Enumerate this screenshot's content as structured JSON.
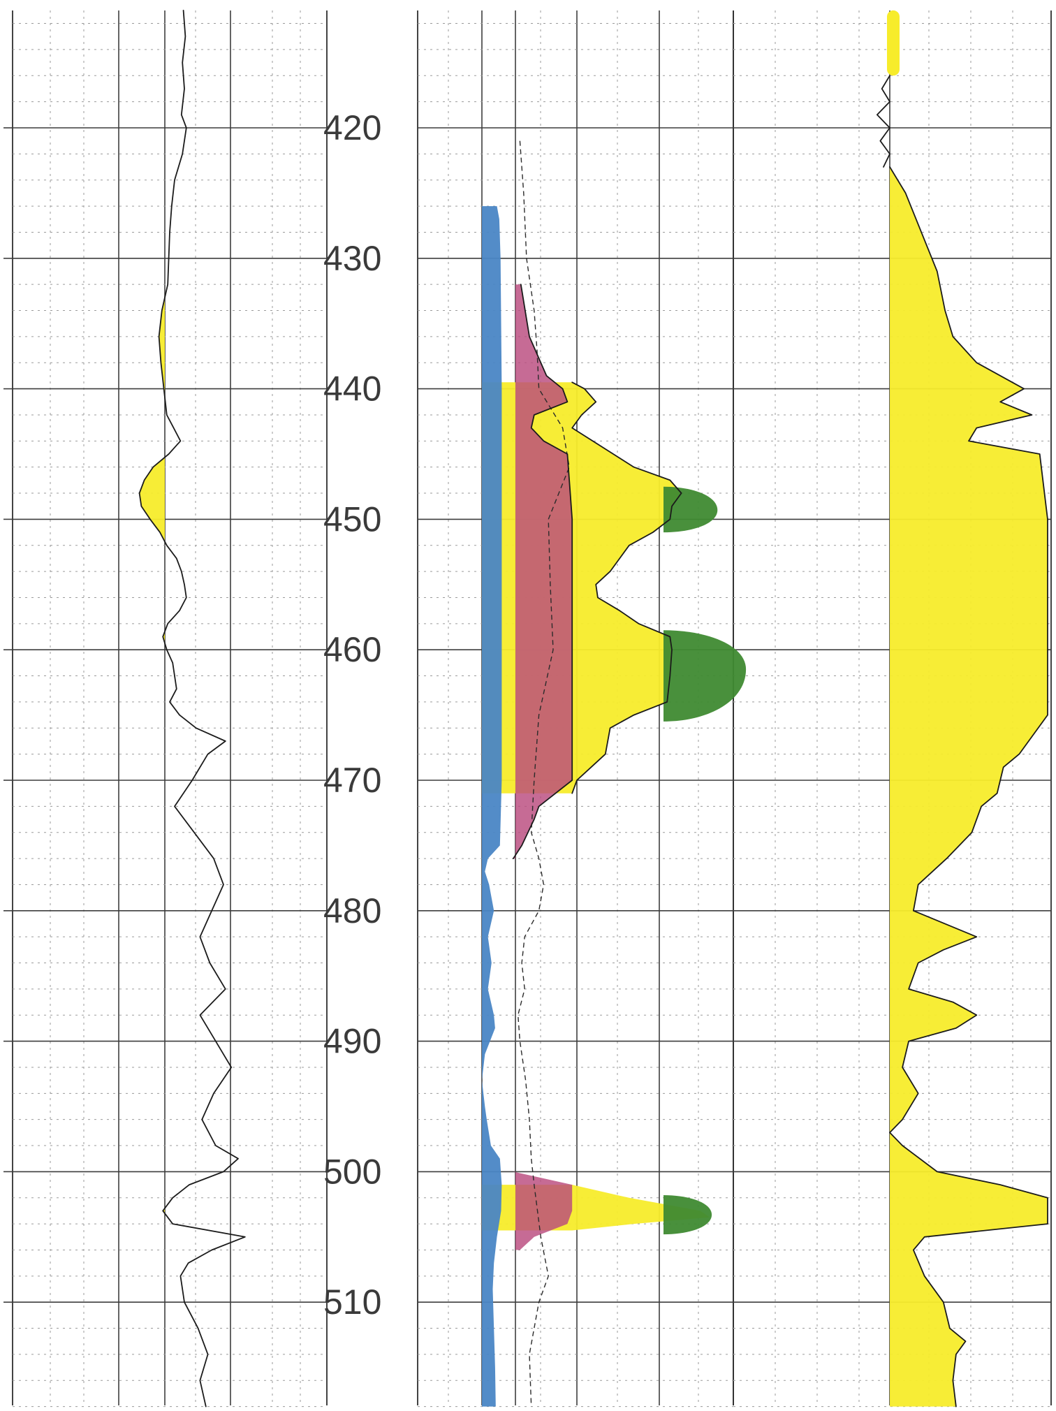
{
  "colors": {
    "paper": "#ffffff",
    "grid": "#3d3d3d",
    "curve": "#1b1b1b",
    "yellow": "#f7ec2b",
    "blue": "#4a86c5",
    "magenta": "#b94a7e",
    "green": "#3f8a32"
  },
  "chart_data": {
    "type": "area",
    "depth_axis": {
      "labels": [
        "420",
        "430",
        "440",
        "450",
        "460",
        "470",
        "480",
        "490",
        "500",
        "510"
      ],
      "range": [
        411,
        518
      ]
    },
    "track1": {
      "curve": [
        [
          411,
          0.19
        ],
        [
          413,
          0.21
        ],
        [
          415,
          0.18
        ],
        [
          417,
          0.2
        ],
        [
          419,
          0.17
        ],
        [
          420,
          0.22
        ],
        [
          422,
          0.18
        ],
        [
          424,
          0.1
        ],
        [
          426,
          0.07
        ],
        [
          428,
          0.05
        ],
        [
          430,
          0.04
        ],
        [
          432,
          0.03
        ],
        [
          434,
          -0.03
        ],
        [
          436,
          -0.06
        ],
        [
          438,
          -0.04
        ],
        [
          440,
          -0.01
        ],
        [
          442,
          0.02
        ],
        [
          443,
          0.09
        ],
        [
          444,
          0.16
        ],
        [
          445,
          0.04
        ],
        [
          446,
          -0.12
        ],
        [
          447,
          -0.21
        ],
        [
          448,
          -0.26
        ],
        [
          449,
          -0.24
        ],
        [
          450,
          -0.15
        ],
        [
          451,
          -0.05
        ],
        [
          452,
          0.02
        ],
        [
          453,
          0.12
        ],
        [
          454,
          0.17
        ],
        [
          455,
          0.2
        ],
        [
          456,
          0.22
        ],
        [
          457,
          0.15
        ],
        [
          458,
          0.03
        ],
        [
          459,
          -0.02
        ],
        [
          460,
          0.02
        ],
        [
          461,
          0.08
        ],
        [
          463,
          0.12
        ],
        [
          464,
          0.05
        ],
        [
          465,
          0.15
        ],
        [
          466,
          0.32
        ],
        [
          467,
          0.62
        ],
        [
          468,
          0.44
        ],
        [
          470,
          0.28
        ],
        [
          472,
          0.1
        ],
        [
          474,
          0.3
        ],
        [
          476,
          0.5
        ],
        [
          478,
          0.6
        ],
        [
          480,
          0.48
        ],
        [
          482,
          0.36
        ],
        [
          484,
          0.46
        ],
        [
          486,
          0.62
        ],
        [
          488,
          0.36
        ],
        [
          490,
          0.52
        ],
        [
          492,
          0.68
        ],
        [
          494,
          0.5
        ],
        [
          496,
          0.38
        ],
        [
          498,
          0.52
        ],
        [
          499,
          0.75
        ],
        [
          500,
          0.6
        ],
        [
          501,
          0.25
        ],
        [
          502,
          0.08
        ],
        [
          503,
          -0.02
        ],
        [
          504,
          0.08
        ],
        [
          505,
          0.82
        ],
        [
          506,
          0.48
        ],
        [
          507,
          0.24
        ],
        [
          508,
          0.16
        ],
        [
          510,
          0.2
        ],
        [
          512,
          0.34
        ],
        [
          514,
          0.44
        ],
        [
          516,
          0.36
        ],
        [
          518,
          0.42
        ]
      ],
      "yellow_fill_intervals": [
        [
          424,
          444
        ],
        [
          445,
          453.5
        ],
        [
          458,
          460.5
        ],
        [
          462.5,
          465
        ],
        [
          501,
          504.5
        ]
      ]
    },
    "track2": {
      "blue_fill": [
        [
          426,
          0.25
        ],
        [
          427,
          0.29
        ],
        [
          430,
          0.31
        ],
        [
          440,
          0.33
        ],
        [
          450,
          0.33
        ],
        [
          460,
          0.33
        ],
        [
          470,
          0.33
        ],
        [
          475,
          0.3
        ],
        [
          476,
          0.1
        ],
        [
          477,
          0.05
        ],
        [
          478,
          0.12
        ],
        [
          480,
          0.2
        ],
        [
          482,
          0.1
        ],
        [
          484,
          0.16
        ],
        [
          486,
          0.1
        ],
        [
          488,
          0.2
        ],
        [
          489,
          0.22
        ],
        [
          491,
          0.05
        ],
        [
          493,
          0.0
        ],
        [
          495,
          0.05
        ],
        [
          496,
          0.08
        ],
        [
          498,
          0.15
        ],
        [
          499,
          0.3
        ],
        [
          501,
          0.33
        ],
        [
          503,
          0.32
        ],
        [
          505,
          0.25
        ],
        [
          507,
          0.2
        ],
        [
          509,
          0.18
        ],
        [
          512,
          0.2
        ],
        [
          515,
          0.22
        ],
        [
          518,
          0.23
        ]
      ],
      "magenta_fill": [
        [
          432,
          0.41
        ],
        [
          436,
          0.5
        ],
        [
          439,
          0.68
        ],
        [
          440,
          0.85
        ],
        [
          441,
          0.9
        ],
        [
          442,
          0.55
        ],
        [
          443,
          0.52
        ],
        [
          444,
          0.65
        ],
        [
          445,
          0.9
        ],
        [
          450,
          0.95
        ],
        [
          460,
          0.95
        ],
        [
          470,
          0.95
        ],
        [
          472,
          0.6
        ],
        [
          473,
          0.55
        ],
        [
          475,
          0.42
        ],
        [
          476,
          0.33
        ]
      ],
      "yellow_fill": [
        [
          439.5,
          0.95
        ],
        [
          440,
          1.08
        ],
        [
          441,
          1.2
        ],
        [
          442,
          1.05
        ],
        [
          443,
          0.95
        ],
        [
          446,
          1.6
        ],
        [
          447,
          1.98
        ],
        [
          448,
          2.1
        ],
        [
          449,
          2.0
        ],
        [
          450,
          1.98
        ],
        [
          451,
          1.8
        ],
        [
          452,
          1.55
        ],
        [
          454,
          1.35
        ],
        [
          455,
          1.2
        ],
        [
          456,
          1.22
        ],
        [
          457,
          1.45
        ],
        [
          458,
          1.65
        ],
        [
          459,
          1.98
        ],
        [
          460,
          2.0
        ],
        [
          462,
          1.98
        ],
        [
          464,
          1.95
        ],
        [
          465,
          1.6
        ],
        [
          466,
          1.35
        ],
        [
          468,
          1.3
        ],
        [
          469,
          1.15
        ],
        [
          470,
          1.0
        ],
        [
          471,
          0.95
        ]
      ],
      "green_fill_intervals": [
        {
          "depth": [
            447.5,
            451.0
          ],
          "peak_depth": 449.3,
          "extent": 2.48
        },
        {
          "depth": [
            458.5,
            465.5
          ],
          "peak_depth": 461.5,
          "extent": 2.78
        },
        {
          "depth": [
            501.8,
            504.8
          ],
          "peak_depth": 503.3,
          "extent": 2.42
        }
      ],
      "lower_magenta": [
        [
          500,
          0.33
        ],
        [
          501,
          0.95
        ],
        [
          503,
          0.95
        ],
        [
          504,
          0.9
        ],
        [
          505,
          0.55
        ],
        [
          506,
          0.4
        ]
      ],
      "lower_yellow": [
        [
          501,
          0.95
        ],
        [
          502,
          1.55
        ],
        [
          503,
          2.3
        ],
        [
          503.5,
          2.4
        ],
        [
          504,
          1.6
        ],
        [
          504.5,
          0.95
        ]
      ],
      "dashed_curve": [
        [
          421,
          0.4
        ],
        [
          425,
          0.44
        ],
        [
          430,
          0.47
        ],
        [
          434,
          0.55
        ],
        [
          437,
          0.58
        ],
        [
          440,
          0.6
        ],
        [
          443,
          0.85
        ],
        [
          446,
          0.92
        ],
        [
          450,
          0.7
        ],
        [
          455,
          0.72
        ],
        [
          460,
          0.75
        ],
        [
          465,
          0.6
        ],
        [
          470,
          0.55
        ],
        [
          474,
          0.52
        ],
        [
          476,
          0.6
        ],
        [
          478,
          0.65
        ],
        [
          480,
          0.6
        ],
        [
          482,
          0.45
        ],
        [
          484,
          0.42
        ],
        [
          486,
          0.45
        ],
        [
          488,
          0.38
        ],
        [
          490,
          0.4
        ],
        [
          493,
          0.46
        ],
        [
          496,
          0.5
        ],
        [
          499,
          0.52
        ],
        [
          501,
          0.55
        ],
        [
          505,
          0.62
        ],
        [
          508,
          0.7
        ],
        [
          510,
          0.6
        ],
        [
          514,
          0.5
        ],
        [
          518,
          0.52
        ]
      ]
    },
    "track3": {
      "top_yellow_interval": [
        411,
        416
      ],
      "curve_top": [
        [
          416,
          0.0
        ],
        [
          417,
          -0.05
        ],
        [
          418,
          0.0
        ],
        [
          419,
          -0.08
        ],
        [
          420,
          0.0
        ],
        [
          421,
          -0.06
        ],
        [
          422,
          0.0
        ],
        [
          423,
          -0.04
        ]
      ],
      "yellow_fill": [
        [
          423,
          0.0
        ],
        [
          425,
          0.1
        ],
        [
          428,
          0.2
        ],
        [
          431,
          0.3
        ],
        [
          434,
          0.35
        ],
        [
          436,
          0.4
        ],
        [
          438,
          0.55
        ],
        [
          440,
          0.85
        ],
        [
          441,
          0.7
        ],
        [
          442,
          0.9
        ],
        [
          443,
          0.55
        ],
        [
          444,
          0.5
        ],
        [
          445,
          0.95
        ],
        [
          450,
          1.0
        ],
        [
          455,
          1.0
        ],
        [
          460,
          1.0
        ],
        [
          465,
          1.0
        ],
        [
          468,
          0.82
        ],
        [
          469,
          0.72
        ],
        [
          470,
          0.7
        ],
        [
          471,
          0.68
        ],
        [
          472,
          0.58
        ],
        [
          474,
          0.52
        ],
        [
          476,
          0.36
        ],
        [
          478,
          0.18
        ],
        [
          480,
          0.15
        ],
        [
          482,
          0.55
        ],
        [
          483,
          0.34
        ],
        [
          484,
          0.18
        ],
        [
          486,
          0.12
        ],
        [
          487,
          0.4
        ],
        [
          488,
          0.55
        ],
        [
          489,
          0.42
        ],
        [
          490,
          0.12
        ],
        [
          492,
          0.08
        ],
        [
          494,
          0.18
        ],
        [
          496,
          0.08
        ],
        [
          497,
          0.0
        ],
        [
          498,
          0.08
        ],
        [
          500,
          0.3
        ],
        [
          501,
          0.7
        ],
        [
          502,
          1.0
        ],
        [
          504,
          1.0
        ],
        [
          505,
          0.22
        ],
        [
          506,
          0.15
        ],
        [
          508,
          0.22
        ],
        [
          510,
          0.34
        ],
        [
          512,
          0.38
        ],
        [
          513,
          0.48
        ],
        [
          514,
          0.42
        ],
        [
          516,
          0.4
        ],
        [
          518,
          0.42
        ]
      ]
    }
  }
}
